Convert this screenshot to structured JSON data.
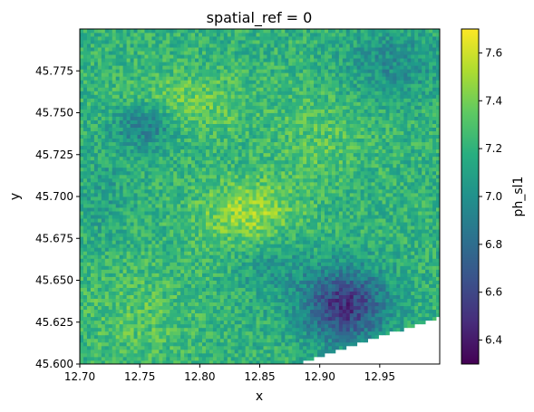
{
  "chart_data": {
    "type": "heatmap",
    "title": "spatial_ref = 0",
    "xlabel": "x",
    "ylabel": "y",
    "xlim": [
      12.7,
      13.0
    ],
    "ylim": [
      45.6,
      45.8
    ],
    "x_ticks": [
      "12.70",
      "12.75",
      "12.80",
      "12.85",
      "12.90",
      "12.95"
    ],
    "y_ticks": [
      "45.600",
      "45.625",
      "45.650",
      "45.675",
      "45.700",
      "45.725",
      "45.750",
      "45.775"
    ],
    "colorbar": {
      "label": "ph_sl1",
      "min": 6.3,
      "max": 7.7,
      "ticks": [
        "6.4",
        "6.6",
        "6.8",
        "7.0",
        "7.2",
        "7.4",
        "7.6"
      ],
      "colormap": "viridis"
    },
    "grid": false,
    "value_range_observed": [
      6.35,
      7.65
    ],
    "features": [
      {
        "region": "center around x=12.84, y=45.69",
        "level": "high (~7.5)"
      },
      {
        "region": "upper-left around x=12.78, y=45.76",
        "level": "high (~7.4)"
      },
      {
        "region": "lower-right around x=12.92, y=45.63",
        "level": "low (~6.5)"
      },
      {
        "region": "left-center around x=12.75, y=45.74",
        "level": "low (~6.8)"
      },
      {
        "region": "bottom-right corner beyond diagonal from (12.88,45.60) to (13.00,45.628)",
        "level": "no data"
      }
    ]
  }
}
